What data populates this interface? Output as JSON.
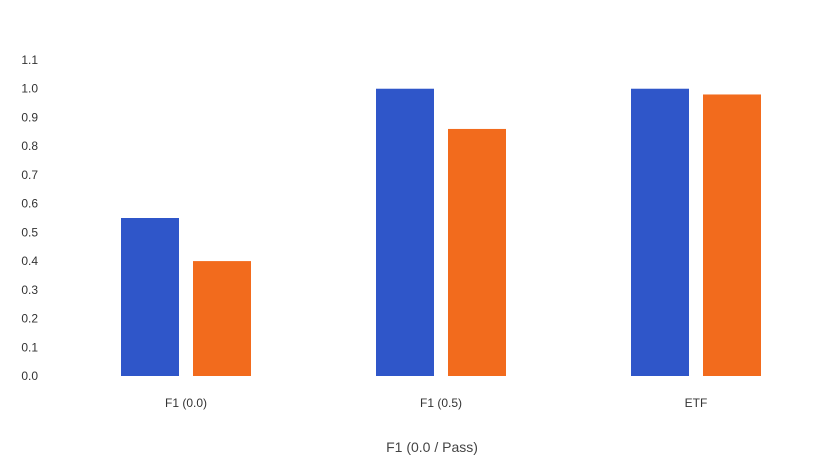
{
  "chart_data": {
    "type": "bar",
    "title": "",
    "xlabel": "F1 (0.0 / Pass)",
    "ylabel": "",
    "categories": [
      "F1 (0.0)",
      "F1 (0.5)",
      "ETF"
    ],
    "series": [
      {
        "values": [
          0.55,
          1.0,
          1.0
        ]
      },
      {
        "values": [
          0.4,
          0.86,
          0.98
        ]
      }
    ],
    "ylim": [
      0,
      1.1
    ],
    "yticks": [
      0,
      0.1,
      0.2,
      0.3,
      0.4,
      0.5,
      0.6,
      0.7,
      0.8,
      0.9,
      1.0,
      1.1
    ],
    "ytick_labels": [
      "0.0",
      "0.1",
      "0.2",
      "0.3",
      "0.4",
      "0.5",
      "0.6",
      "0.7",
      "0.8",
      "0.9",
      "1.0",
      "1.1"
    ],
    "colors": [
      "#2f56c9",
      "#f26b1d"
    ],
    "grid": false,
    "legend": "none"
  }
}
